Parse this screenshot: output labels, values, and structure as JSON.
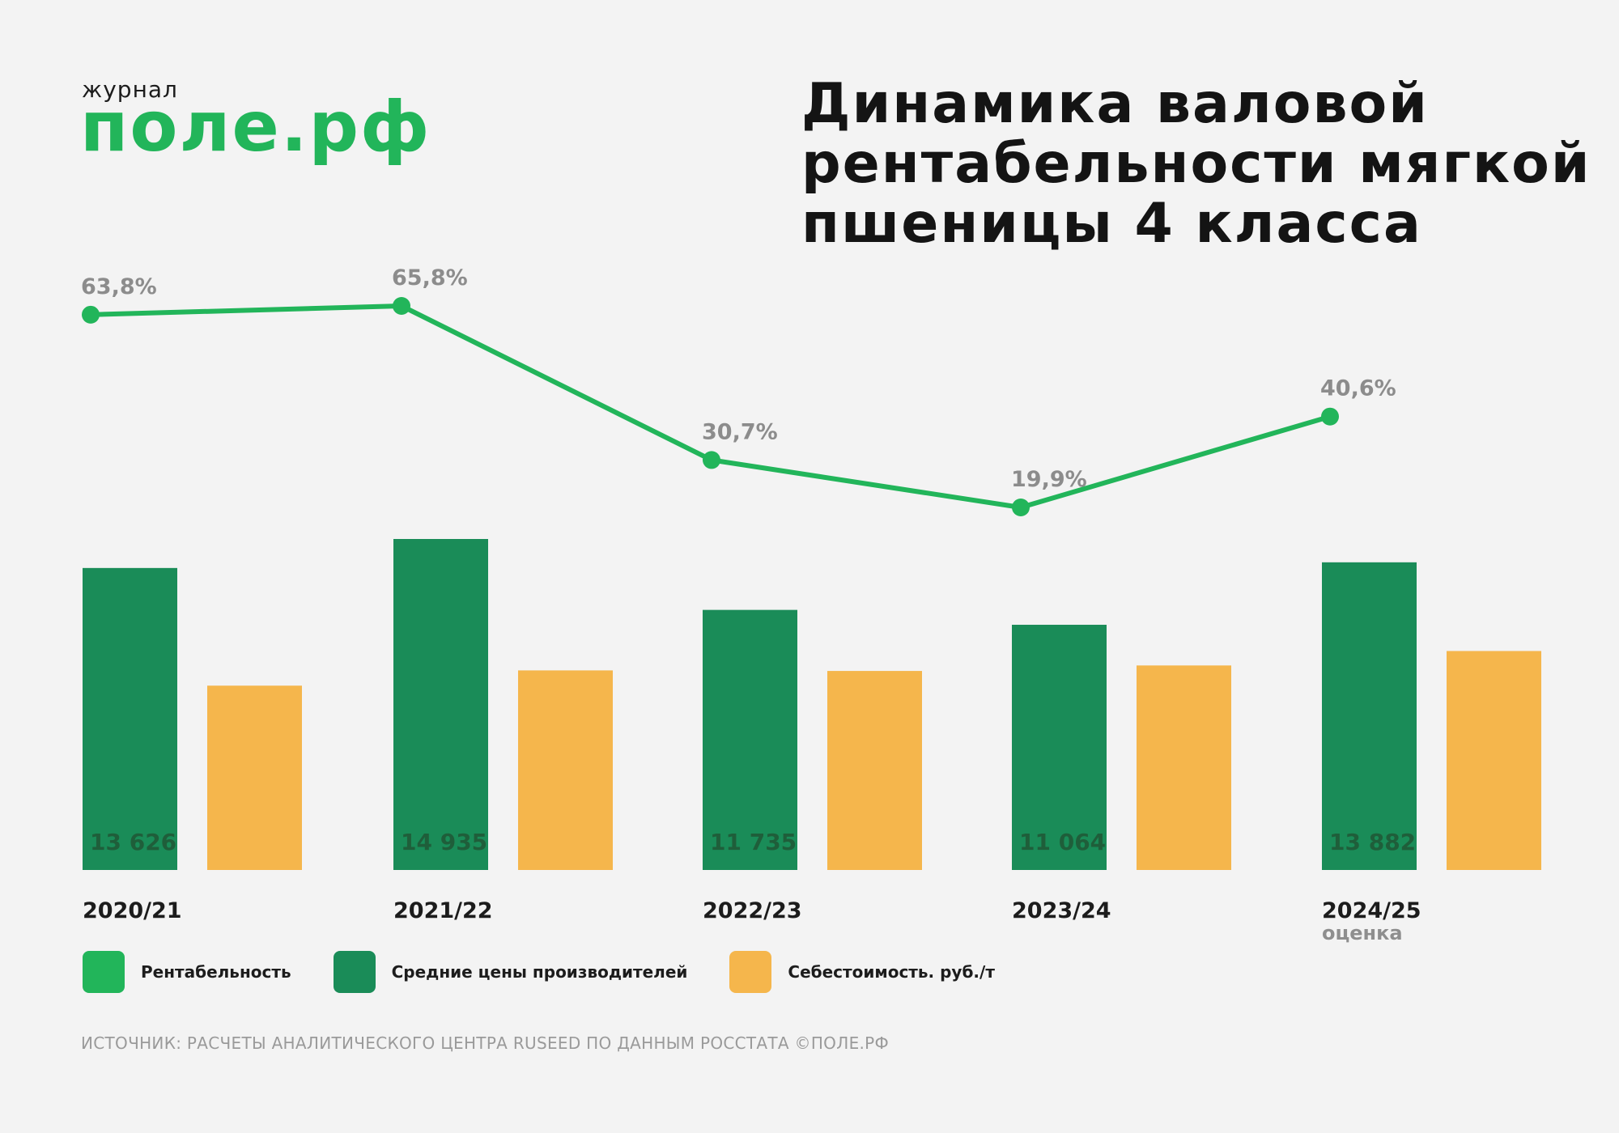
{
  "header": {
    "logo_small": "журнал",
    "logo_big": "поле.рф",
    "title": "Динамика валовой рентабельности мягкой пшеницы 4 класса"
  },
  "colors": {
    "line": "#22b55a",
    "prices": "#1a8c58",
    "cost": "#f5b64c",
    "background": "#f3f3f3"
  },
  "chart_data": {
    "type": "bar",
    "categories": [
      "2020/21",
      "2021/22",
      "2022/23",
      "2023/24",
      "2024/25"
    ],
    "category_notes": [
      "",
      "",
      "",
      "",
      "оценка"
    ],
    "series": [
      {
        "name": "Средние цены производителей",
        "type": "bar",
        "values": [
          13626,
          14935,
          11735,
          11064,
          13882
        ],
        "labels": [
          "13 626",
          "14 935",
          "11 735",
          "11 064",
          "13 882"
        ]
      },
      {
        "name": "Себестоимость. руб./т",
        "type": "bar",
        "values": [
          8317,
          9005,
          8980,
          9228,
          9880
        ]
      },
      {
        "name": "Рентабельность",
        "type": "line",
        "values": [
          63.8,
          65.8,
          30.7,
          19.9,
          40.6
        ],
        "labels": [
          "63,8%",
          "65,8%",
          "30,7%",
          "19,9%",
          "40,6%"
        ]
      }
    ],
    "bar_ylim": [
      0,
      14935
    ],
    "line_ylim": [
      19.9,
      65.8
    ],
    "grid": false,
    "legend_position": "bottom-left"
  },
  "legend": [
    {
      "label": "Рентабельность",
      "color": "#22b55a"
    },
    {
      "label": "Средние цены производителей",
      "color": "#1a8c58"
    },
    {
      "label": "Себестоимость. руб./т",
      "color": "#f5b64c"
    }
  ],
  "source": "ИСТОЧНИК: РАСЧЕТЫ АНАЛИТИЧЕСКОГО ЦЕНТРА RUSEED ПО ДАННЫМ РОССТАТА ©ПОЛЕ.РФ"
}
